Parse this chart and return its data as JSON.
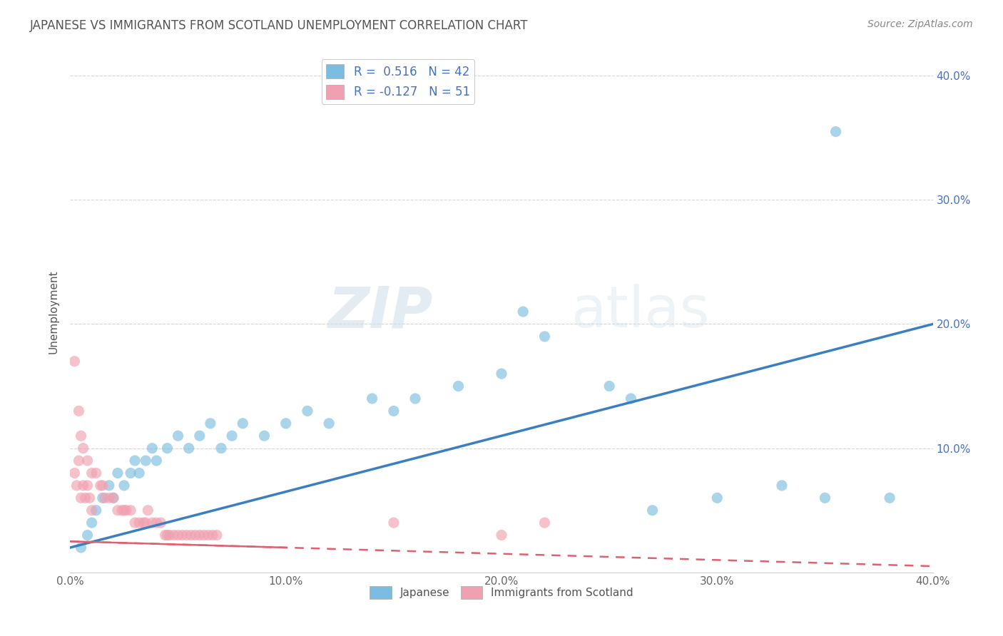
{
  "title": "JAPANESE VS IMMIGRANTS FROM SCOTLAND UNEMPLOYMENT CORRELATION CHART",
  "source": "Source: ZipAtlas.com",
  "ylabel": "Unemployment",
  "watermark_zip": "ZIP",
  "watermark_atlas": "atlas",
  "xlim": [
    0.0,
    0.4
  ],
  "ylim": [
    0.0,
    0.42
  ],
  "xticks": [
    0.0,
    0.1,
    0.2,
    0.3,
    0.4
  ],
  "yticks": [
    0.1,
    0.2,
    0.3,
    0.4
  ],
  "xtick_labels": [
    "0.0%",
    "10.0%",
    "20.0%",
    "30.0%",
    "40.0%"
  ],
  "ytick_labels": [
    "10.0%",
    "20.0%",
    "30.0%",
    "40.0%"
  ],
  "japanese_color": "#7bbde0",
  "scotland_color": "#f0a0b0",
  "japanese_R": 0.516,
  "japanese_N": 42,
  "scotland_R": -0.127,
  "scotland_N": 51,
  "japanese_line_color": "#3a7fc1",
  "scotland_line_color": "#e06070",
  "background_color": "#ffffff",
  "grid_color": "#cccccc",
  "title_color": "#555555",
  "japanese_points": [
    [
      0.005,
      0.02
    ],
    [
      0.008,
      0.03
    ],
    [
      0.01,
      0.04
    ],
    [
      0.012,
      0.05
    ],
    [
      0.015,
      0.06
    ],
    [
      0.018,
      0.07
    ],
    [
      0.02,
      0.06
    ],
    [
      0.022,
      0.08
    ],
    [
      0.025,
      0.07
    ],
    [
      0.028,
      0.08
    ],
    [
      0.03,
      0.09
    ],
    [
      0.032,
      0.08
    ],
    [
      0.035,
      0.09
    ],
    [
      0.038,
      0.1
    ],
    [
      0.04,
      0.09
    ],
    [
      0.045,
      0.1
    ],
    [
      0.05,
      0.11
    ],
    [
      0.055,
      0.1
    ],
    [
      0.06,
      0.11
    ],
    [
      0.065,
      0.12
    ],
    [
      0.07,
      0.1
    ],
    [
      0.075,
      0.11
    ],
    [
      0.08,
      0.12
    ],
    [
      0.09,
      0.11
    ],
    [
      0.1,
      0.12
    ],
    [
      0.11,
      0.13
    ],
    [
      0.12,
      0.12
    ],
    [
      0.14,
      0.14
    ],
    [
      0.15,
      0.13
    ],
    [
      0.16,
      0.14
    ],
    [
      0.18,
      0.15
    ],
    [
      0.2,
      0.16
    ],
    [
      0.21,
      0.21
    ],
    [
      0.22,
      0.19
    ],
    [
      0.25,
      0.15
    ],
    [
      0.26,
      0.14
    ],
    [
      0.27,
      0.05
    ],
    [
      0.3,
      0.06
    ],
    [
      0.33,
      0.07
    ],
    [
      0.35,
      0.06
    ],
    [
      0.38,
      0.06
    ],
    [
      0.355,
      0.355
    ]
  ],
  "scotland_points": [
    [
      0.002,
      0.17
    ],
    [
      0.004,
      0.13
    ],
    [
      0.005,
      0.11
    ],
    [
      0.006,
      0.1
    ],
    [
      0.008,
      0.09
    ],
    [
      0.01,
      0.08
    ],
    [
      0.012,
      0.08
    ],
    [
      0.014,
      0.07
    ],
    [
      0.015,
      0.07
    ],
    [
      0.016,
      0.06
    ],
    [
      0.018,
      0.06
    ],
    [
      0.02,
      0.06
    ],
    [
      0.022,
      0.05
    ],
    [
      0.024,
      0.05
    ],
    [
      0.025,
      0.05
    ],
    [
      0.026,
      0.05
    ],
    [
      0.028,
      0.05
    ],
    [
      0.03,
      0.04
    ],
    [
      0.032,
      0.04
    ],
    [
      0.034,
      0.04
    ],
    [
      0.035,
      0.04
    ],
    [
      0.036,
      0.05
    ],
    [
      0.038,
      0.04
    ],
    [
      0.04,
      0.04
    ],
    [
      0.042,
      0.04
    ],
    [
      0.044,
      0.03
    ],
    [
      0.045,
      0.03
    ],
    [
      0.046,
      0.03
    ],
    [
      0.048,
      0.03
    ],
    [
      0.05,
      0.03
    ],
    [
      0.052,
      0.03
    ],
    [
      0.054,
      0.03
    ],
    [
      0.056,
      0.03
    ],
    [
      0.058,
      0.03
    ],
    [
      0.06,
      0.03
    ],
    [
      0.062,
      0.03
    ],
    [
      0.064,
      0.03
    ],
    [
      0.066,
      0.03
    ],
    [
      0.068,
      0.03
    ],
    [
      0.002,
      0.08
    ],
    [
      0.003,
      0.07
    ],
    [
      0.004,
      0.09
    ],
    [
      0.005,
      0.06
    ],
    [
      0.006,
      0.07
    ],
    [
      0.007,
      0.06
    ],
    [
      0.008,
      0.07
    ],
    [
      0.009,
      0.06
    ],
    [
      0.01,
      0.05
    ],
    [
      0.2,
      0.03
    ],
    [
      0.22,
      0.04
    ],
    [
      0.15,
      0.04
    ]
  ],
  "jp_line_x0": 0.0,
  "jp_line_y0": 0.02,
  "jp_line_x1": 0.4,
  "jp_line_y1": 0.2,
  "sc_line_x0": 0.0,
  "sc_line_y0": 0.025,
  "sc_line_x1": 0.4,
  "sc_line_y1": 0.005
}
